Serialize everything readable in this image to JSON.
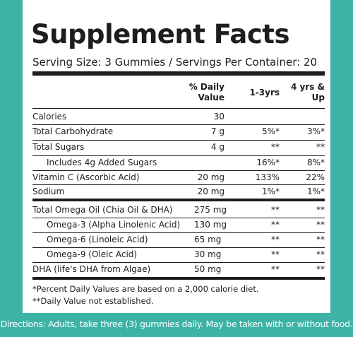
{
  "title": "Supplement Facts",
  "serving": "Serving Size: 3 Gummies / Servings Per Container: 20",
  "header": {
    "dv": "% Daily Value",
    "col1": "1-3yrs",
    "col2": "4 yrs & Up"
  },
  "sections": [
    {
      "rows": [
        {
          "name": "Calories",
          "amount": "30"
        },
        {
          "name": "Total Carbohydrate",
          "amount": "7 g",
          "dv1": "5%*",
          "dv2": "3%*"
        },
        {
          "name": "Total Sugars",
          "amount": "4 g",
          "dv1": "**",
          "dv2": "**"
        },
        {
          "name": "Includes 4g Added Sugars",
          "dv1": "16%*",
          "dv2": "8%*"
        },
        {
          "name": "Vitamin C (Ascorbic Acid)",
          "amount": "20 mg",
          "dv1": "133%",
          "dv2": "22%"
        },
        {
          "name": "Sodium",
          "amount": "20 mg",
          "dv1": "1%*",
          "dv2": "1%*"
        }
      ]
    },
    {
      "rows": [
        {
          "name": "Total Omega Oil (Chia Oil & DHA)",
          "amount": "275 mg",
          "dv1": "**",
          "dv2": "**"
        },
        {
          "name": "Omega-3 (Alpha Linolenic Acid)",
          "amount": "130 mg",
          "dv1": "**",
          "dv2": "**"
        },
        {
          "name": "Omega-6 (Linoleic Acid)",
          "amount": "65 mg",
          "dv1": "**",
          "dv2": "**"
        },
        {
          "name": "Omega-9 (Oleic Acid)",
          "amount": "30 mg",
          "dv1": "**",
          "dv2": "**"
        },
        {
          "name": "DHA (life's DHA from Algae)",
          "amount": "50 mg",
          "dv1": "**",
          "dv2": "**"
        }
      ]
    }
  ],
  "footnotes": [
    "*Percent Daily Values are based on a 2,000 calorie diet.",
    "**Daily Value not established."
  ],
  "directions": "Directions: Adults, take three (3) gummies daily. May be taken with or without food."
}
